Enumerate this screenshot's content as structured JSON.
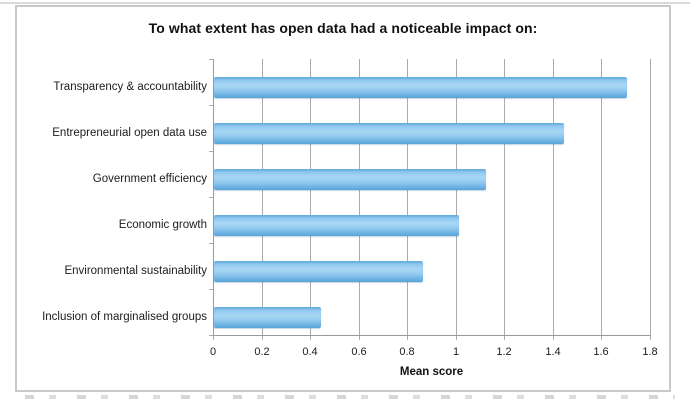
{
  "chart_data": {
    "type": "bar",
    "orientation": "horizontal",
    "title": "To what extent has open data had a noticeable impact on:",
    "categories": [
      "Transparency & accountability",
      "Entrepreneurial open data use",
      "Government efficiency",
      "Economic growth",
      "Environmental sustainability",
      "Inclusion of marginalised groups"
    ],
    "values": [
      1.7,
      1.44,
      1.12,
      1.01,
      0.86,
      0.44
    ],
    "xlabel": "Mean score",
    "ylabel": "",
    "xlim": [
      0,
      1.8
    ],
    "xticks": [
      0,
      0.2,
      0.4,
      0.6,
      0.8,
      1,
      1.2,
      1.4,
      1.6,
      1.8
    ],
    "xtick_labels": [
      "0",
      "0.2",
      "0.4",
      "0.6",
      "0.8",
      "1",
      "1.2",
      "1.4",
      "1.6",
      "1.8"
    ],
    "grid": true,
    "legend": false,
    "bar_gradient": [
      "#5fa8db",
      "#8ec7ee",
      "#a9d7f5",
      "#93cbf0",
      "#58a3d8"
    ],
    "gridline_color": "#ababab",
    "axis_color": "#9a9a9a",
    "border_color": "#c9c9c9",
    "text_color": "#111111"
  }
}
